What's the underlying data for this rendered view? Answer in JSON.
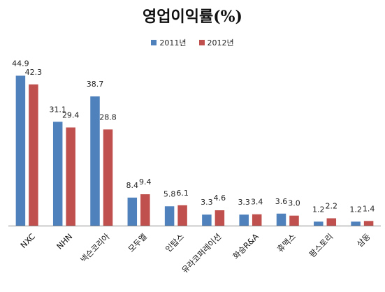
{
  "chart_data": {
    "type": "bar",
    "title": "영업이익률(%)",
    "categories": [
      "NXC",
      "NHN",
      "넥슨코리아",
      "모두엘",
      "인탑스",
      "유라코퍼레이션",
      "화승R&A",
      "휴맥스",
      "팜스토리",
      "삼동"
    ],
    "series": [
      {
        "name": "2011년",
        "color": "#4f81bd",
        "values": [
          44.9,
          31.1,
          38.7,
          8.4,
          5.8,
          3.3,
          3.3,
          3.6,
          1.2,
          1.2
        ]
      },
      {
        "name": "2012년",
        "color": "#c0504d",
        "values": [
          42.3,
          29.4,
          28.8,
          9.4,
          6.1,
          4.6,
          3.4,
          3.0,
          2.2,
          1.4
        ]
      }
    ],
    "ylim": [
      0,
      50
    ],
    "grid": false,
    "legend_position": "top"
  }
}
